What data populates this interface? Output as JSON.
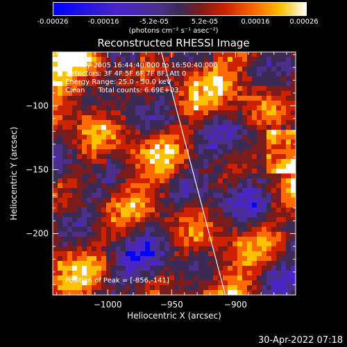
{
  "colorbar": {
    "ticks": [
      "-0.00026",
      "-0.00016",
      "-5.2e-05",
      "5.2e-05",
      "0.00016",
      "0.00026"
    ],
    "units": "(photons cm⁻² s⁻¹ asec⁻²)"
  },
  "title": "Reconstructed RHESSI Image",
  "annotations": {
    "line1": "28-May-2005 16:44:40.000 to 16:50:40.000",
    "line2": "Detectors: 3F 4F 5F 6F 7F 8F, Att 0",
    "line3": "Energy Range: 25.0 - 50.0 keV",
    "line4": "Clean      Total counts: 6.69E+03",
    "peak": "Position of Peak = [-856,-141]"
  },
  "footer": "30-Apr-2022 07:18",
  "chart_data": {
    "type": "heatmap",
    "title": "Reconstructed RHESSI Image",
    "xlabel": "Heliocentric X (arcsec)",
    "ylabel": "Heliocentric Y (arcsec)",
    "xlim": [
      -1043,
      -853
    ],
    "ylim": [
      -248,
      -58
    ],
    "x_ticks": [
      -1000,
      -950,
      -900
    ],
    "y_ticks": [
      -100,
      -150,
      -200
    ],
    "x_tick_labels": [
      "−1000",
      "−950",
      "−900"
    ],
    "y_tick_labels": [
      "−100",
      "−150",
      "−200"
    ],
    "colorbar_range": [
      -0.00026,
      0.00026
    ],
    "limb_line": [
      [
        -958,
        -58
      ],
      [
        -908,
        -248
      ]
    ],
    "palette": [
      "#0000ff",
      "#4a25c8",
      "#4b2f8a",
      "#3a2a54",
      "#7a1c1c",
      "#cc2200",
      "#ff6a00",
      "#ffc000",
      "#ffffff"
    ]
  }
}
